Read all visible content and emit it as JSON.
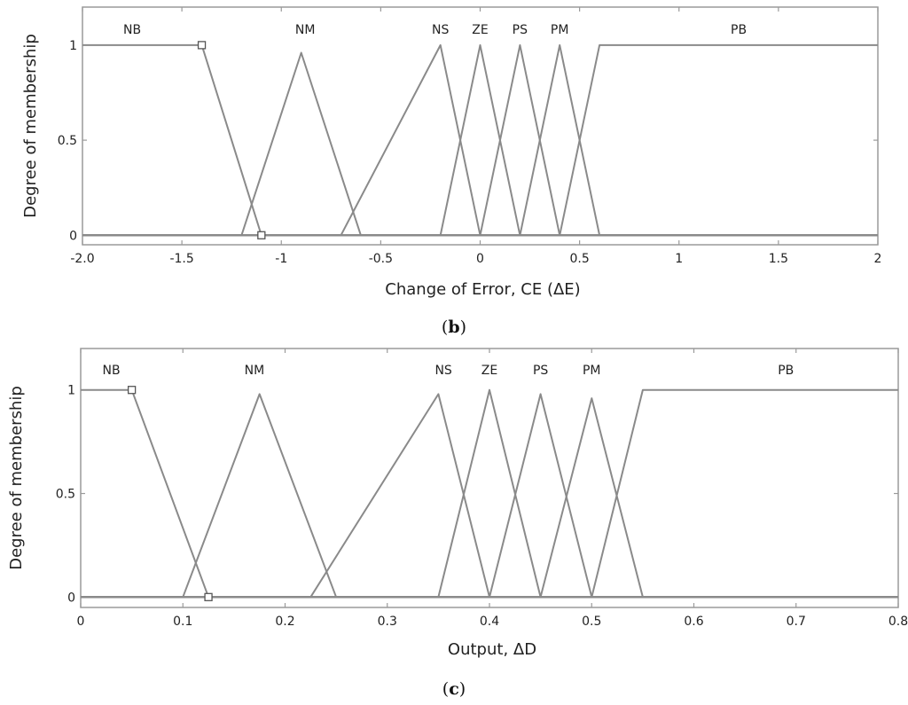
{
  "chart_data": [
    {
      "type": "line",
      "caption_open": "(",
      "caption_letter": "b",
      "caption_close": ")",
      "xlabel": "Change of Error, CE (ΔE)",
      "ylabel": "Degree of membership",
      "xlim": [
        -2.0,
        2.0
      ],
      "ylim": [
        -0.05,
        1.2
      ],
      "xticks": [
        {
          "value": -2.0,
          "label": "-2.0"
        },
        {
          "value": -1.5,
          "label": "-1.5"
        },
        {
          "value": -1.0,
          "label": "-1"
        },
        {
          "value": -0.5,
          "label": "-0.5"
        },
        {
          "value": 0.0,
          "label": "0"
        },
        {
          "value": 0.5,
          "label": "0.5"
        },
        {
          "value": 1.0,
          "label": "1"
        },
        {
          "value": 1.5,
          "label": "1.5"
        },
        {
          "value": 2.0,
          "label": "2"
        }
      ],
      "yticks": [
        {
          "value": 0,
          "label": "0"
        },
        {
          "value": 0.5,
          "label": "0.5"
        },
        {
          "value": 1,
          "label": "1"
        }
      ],
      "series": [
        {
          "name": "NB",
          "label_x": -1.75,
          "x": [
            -2.0,
            -1.4,
            -1.1,
            2.0
          ],
          "y": [
            1,
            1,
            0,
            0
          ]
        },
        {
          "name": "NM",
          "label_x": -0.88,
          "x": [
            -2.0,
            -1.2,
            -0.9,
            -0.6,
            2.0
          ],
          "y": [
            0,
            0,
            0.96,
            0,
            0
          ]
        },
        {
          "name": "NS",
          "label_x": -0.2,
          "x": [
            -2.0,
            -0.7,
            -0.2,
            0.0,
            2.0
          ],
          "y": [
            0,
            0,
            1,
            0,
            0
          ]
        },
        {
          "name": "ZE",
          "label_x": 0.0,
          "x": [
            -2.0,
            -0.2,
            0.0,
            0.2,
            2.0
          ],
          "y": [
            0,
            0,
            1,
            0,
            0
          ]
        },
        {
          "name": "PS",
          "label_x": 0.2,
          "x": [
            -2.0,
            0.0,
            0.2,
            0.4,
            2.0
          ],
          "y": [
            0,
            0,
            1,
            0,
            0
          ]
        },
        {
          "name": "PM",
          "label_x": 0.4,
          "x": [
            -2.0,
            0.2,
            0.4,
            0.6,
            2.0
          ],
          "y": [
            0,
            0,
            1,
            0,
            0
          ]
        },
        {
          "name": "PB",
          "label_x": 1.3,
          "x": [
            -2.0,
            0.4,
            0.6,
            2.0
          ],
          "y": [
            0,
            0,
            1,
            1
          ]
        }
      ],
      "markers": [
        {
          "x": -1.4,
          "y": 1
        },
        {
          "x": -1.1,
          "y": 0
        }
      ]
    },
    {
      "type": "line",
      "caption_open": "(",
      "caption_letter": "c",
      "caption_close": ")",
      "xlabel": "Output, ΔD",
      "ylabel": "Degree of membership",
      "xlim": [
        0,
        0.8
      ],
      "ylim": [
        -0.05,
        1.2
      ],
      "xticks": [
        {
          "value": 0,
          "label": "0"
        },
        {
          "value": 0.1,
          "label": "0.1"
        },
        {
          "value": 0.2,
          "label": "0.2"
        },
        {
          "value": 0.3,
          "label": "0.3"
        },
        {
          "value": 0.4,
          "label": "0.4"
        },
        {
          "value": 0.5,
          "label": "0.5"
        },
        {
          "value": 0.6,
          "label": "0.6"
        },
        {
          "value": 0.7,
          "label": "0.7"
        },
        {
          "value": 0.8,
          "label": "0.8"
        }
      ],
      "yticks": [
        {
          "value": 0,
          "label": "0"
        },
        {
          "value": 0.5,
          "label": "0.5"
        },
        {
          "value": 1,
          "label": "1"
        }
      ],
      "series": [
        {
          "name": "NB",
          "label_x": 0.03,
          "x": [
            0,
            0.05,
            0.125,
            0.8
          ],
          "y": [
            1,
            1,
            0,
            0
          ]
        },
        {
          "name": "NM",
          "label_x": 0.17,
          "x": [
            0,
            0.1,
            0.175,
            0.25,
            0.8
          ],
          "y": [
            0,
            0,
            0.98,
            0,
            0
          ]
        },
        {
          "name": "NS",
          "label_x": 0.355,
          "x": [
            0,
            0.225,
            0.35,
            0.4,
            0.8
          ],
          "y": [
            0,
            0,
            0.98,
            0,
            0
          ]
        },
        {
          "name": "ZE",
          "label_x": 0.4,
          "x": [
            0,
            0.35,
            0.4,
            0.45,
            0.8
          ],
          "y": [
            0,
            0,
            1,
            0,
            0
          ]
        },
        {
          "name": "PS",
          "label_x": 0.45,
          "x": [
            0,
            0.4,
            0.45,
            0.5,
            0.8
          ],
          "y": [
            0,
            0,
            0.98,
            0,
            0
          ]
        },
        {
          "name": "PM",
          "label_x": 0.5,
          "x": [
            0,
            0.45,
            0.5,
            0.55,
            0.8
          ],
          "y": [
            0,
            0,
            0.96,
            0,
            0
          ]
        },
        {
          "name": "PB",
          "label_x": 0.69,
          "x": [
            0,
            0.5,
            0.55,
            0.8
          ],
          "y": [
            0,
            0,
            1,
            1
          ]
        }
      ],
      "markers": [
        {
          "x": 0.05,
          "y": 1
        },
        {
          "x": 0.125,
          "y": 0
        }
      ]
    }
  ],
  "style": {
    "line_color": "#8a8a8a",
    "axes_color": "#9a9a9a",
    "text_color": "#222222"
  }
}
